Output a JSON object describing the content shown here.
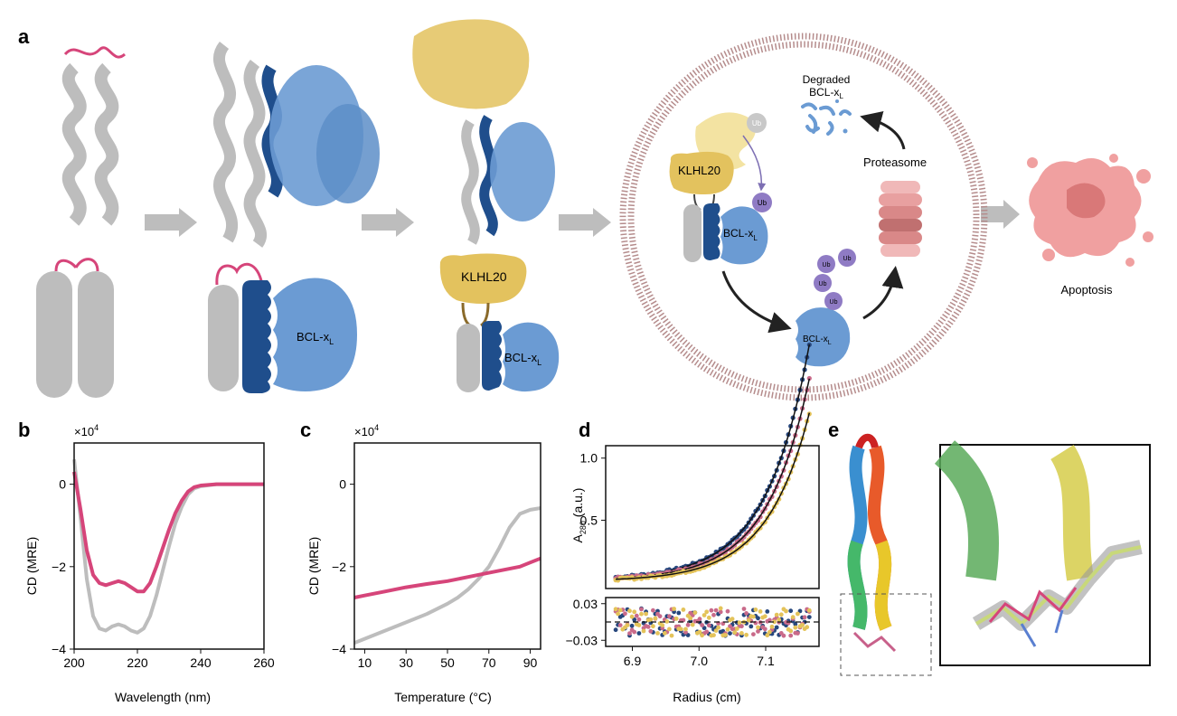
{
  "panels": {
    "a": {
      "label": "a",
      "klhl20_label": "KLHL20",
      "bcl_label_base": "BCL-x",
      "bcl_label_sub": "L",
      "ub_label": "Ub",
      "proteasome_label": "Proteasome",
      "degraded_line1": "Degraded",
      "degraded_line2_base": "BCL-x",
      "degraded_line2_sub": "L",
      "apoptosis_label": "Apoptosis"
    },
    "b": {
      "label": "b",
      "xlabel": "Wavelength (nm)",
      "ylabel": "CD (MRE)",
      "multiplier": "×10",
      "multiplier_exp": "4"
    },
    "c": {
      "label": "c",
      "xlabel": "Temperature (°C)",
      "ylabel": "CD (MRE)",
      "multiplier": "×10",
      "multiplier_exp": "4"
    },
    "d": {
      "label": "d",
      "xlabel": "Radius (cm)",
      "ylabel_base": "A",
      "ylabel_sub": "280",
      "ylabel_rest": " (a.u.)"
    },
    "e": {
      "label": "e"
    }
  },
  "colors": {
    "gray": "#bdbdbd",
    "pink": "#d6457a",
    "navy": "#1f4e8c",
    "blue": "#6b9bd3",
    "gold": "#e3c25e",
    "purple": "#8f7bc4",
    "membrane": "#b58c8c"
  },
  "chart_data": [
    {
      "id": "b",
      "type": "line",
      "xlabel": "Wavelength (nm)",
      "ylabel": "CD (MRE)",
      "xlim": [
        200,
        260
      ],
      "ylim": [
        -4,
        1
      ],
      "xticks": [
        200,
        220,
        240,
        260
      ],
      "yticks": [
        0,
        -2,
        -4
      ],
      "series": [
        {
          "color": "#bdbdbd",
          "x": [
            200,
            202,
            204,
            206,
            208,
            210,
            212,
            214,
            216,
            218,
            220,
            222,
            224,
            226,
            228,
            230,
            232,
            234,
            236,
            238,
            240,
            245,
            250,
            260
          ],
          "y": [
            0.6,
            -0.8,
            -2.3,
            -3.2,
            -3.5,
            -3.55,
            -3.45,
            -3.4,
            -3.45,
            -3.55,
            -3.6,
            -3.5,
            -3.2,
            -2.7,
            -2.1,
            -1.5,
            -0.95,
            -0.55,
            -0.25,
            -0.1,
            -0.05,
            0,
            0,
            0
          ]
        },
        {
          "color": "#d6457a",
          "x": [
            200,
            202,
            204,
            206,
            208,
            210,
            212,
            214,
            216,
            218,
            220,
            222,
            224,
            226,
            228,
            230,
            232,
            234,
            236,
            238,
            240,
            245,
            250,
            260
          ],
          "y": [
            0.3,
            -0.6,
            -1.6,
            -2.2,
            -2.4,
            -2.45,
            -2.4,
            -2.35,
            -2.4,
            -2.5,
            -2.6,
            -2.6,
            -2.4,
            -2.0,
            -1.55,
            -1.1,
            -0.7,
            -0.4,
            -0.18,
            -0.07,
            -0.03,
            0,
            0,
            0
          ]
        }
      ]
    },
    {
      "id": "c",
      "type": "line",
      "xlabel": "Temperature (°C)",
      "ylabel": "CD (MRE)",
      "xlim": [
        5,
        95
      ],
      "ylim": [
        -4,
        1
      ],
      "xticks": [
        10,
        30,
        50,
        70,
        90
      ],
      "yticks": [
        0,
        -2,
        -4
      ],
      "series": [
        {
          "color": "#bdbdbd",
          "x": [
            5,
            10,
            20,
            30,
            40,
            50,
            55,
            60,
            65,
            70,
            75,
            80,
            85,
            90,
            95
          ],
          "y": [
            -3.85,
            -3.75,
            -3.55,
            -3.35,
            -3.15,
            -2.9,
            -2.75,
            -2.55,
            -2.3,
            -2.0,
            -1.55,
            -1.05,
            -0.72,
            -0.62,
            -0.58
          ]
        },
        {
          "color": "#d6457a",
          "x": [
            5,
            10,
            20,
            30,
            40,
            50,
            60,
            70,
            80,
            85,
            90,
            95
          ],
          "y": [
            -2.75,
            -2.7,
            -2.6,
            -2.5,
            -2.42,
            -2.35,
            -2.25,
            -2.15,
            -2.05,
            -2.0,
            -1.9,
            -1.8
          ]
        }
      ]
    },
    {
      "id": "d",
      "type": "scatter",
      "xlabel": "Radius (cm)",
      "ylabel": "A280 (a.u.)",
      "xlim": [
        6.86,
        7.18
      ],
      "ylim": [
        -0.05,
        1.1
      ],
      "xticks": [
        6.9,
        7.0,
        7.1
      ],
      "xticklabels": [
        "6.9",
        "7.0",
        "7.1"
      ],
      "yticks": [
        0.5,
        1.0
      ],
      "yticklabels": [
        "0.5",
        "1.0"
      ],
      "residual_ylim": [
        -0.04,
        0.04
      ],
      "residual_yticks": [
        0.03,
        -0.03
      ],
      "residual_yticklabels": [
        "0.03",
        "−0.03"
      ],
      "series": [
        {
          "color": "#27477d",
          "y0": 0.02,
          "amp": 0.0105,
          "k": 15.5
        },
        {
          "color": "#c96a8a",
          "y0": 0.015,
          "amp": 0.009,
          "k": 15.5
        },
        {
          "color": "#e4c35a",
          "y0": 0.01,
          "amp": 0.0075,
          "k": 15.5
        }
      ]
    }
  ]
}
